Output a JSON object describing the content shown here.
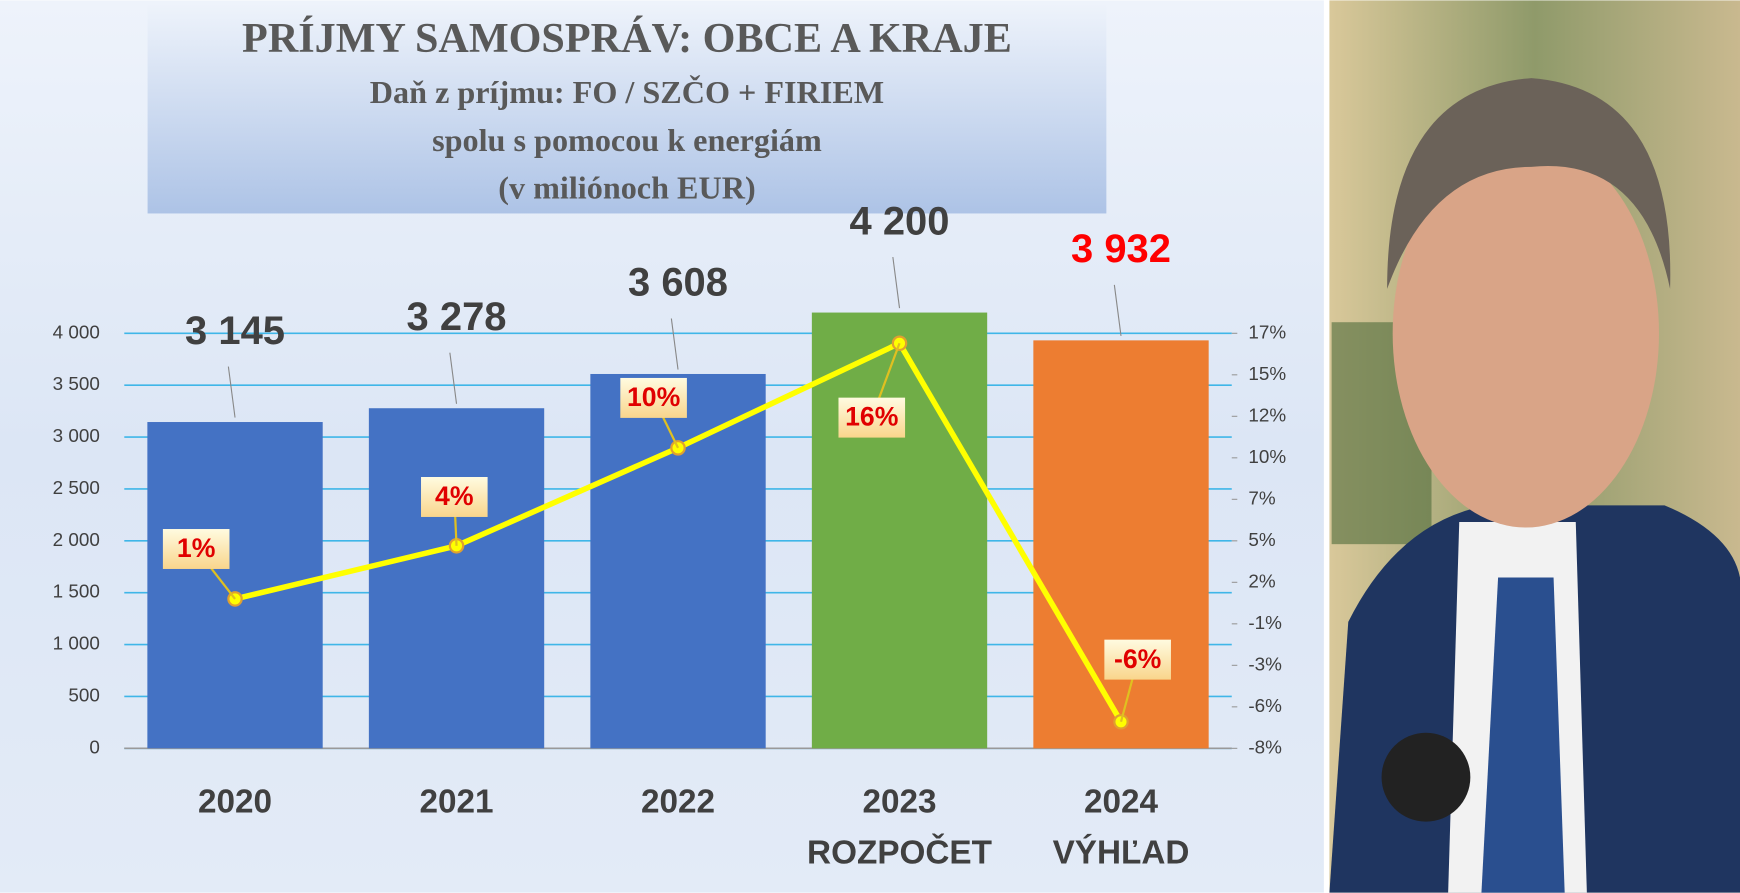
{
  "chart_data": {
    "type": "bar",
    "title": "PRÍJMY SAMOSPRÁV: OBCE A KRAJE",
    "subtitle": [
      "Daň z príjmu: FO / SZČO + FIRIEM",
      "spolu s pomocou k energiám",
      "(v miliónoch EUR)"
    ],
    "categories": [
      "2020",
      "2021",
      "2022",
      "2023",
      "2024"
    ],
    "category_sublabels": [
      null,
      null,
      null,
      "ROZPOČET",
      "VÝHĽAD"
    ],
    "series": [
      {
        "type": "bar",
        "colors": [
          "#4472c4",
          "#4472c4",
          "#4472c4",
          "#70ad47",
          "#ed7d31"
        ],
        "values": [
          3145,
          3278,
          3608,
          4200,
          3932
        ],
        "value_labels": [
          "3 145",
          "3 278",
          "3 608",
          "4 200",
          "3 932"
        ],
        "value_label_colors": [
          "#404040",
          "#404040",
          "#404040",
          "#404040",
          "#ff0000"
        ]
      },
      {
        "type": "line",
        "axis": "y2",
        "color": "#ffff00",
        "values": [
          1,
          4.2,
          10.1,
          16.4,
          -6.4
        ],
        "value_labels": [
          "1%",
          "4%",
          "10%",
          "16%",
          "-6%"
        ]
      }
    ],
    "ylim": [
      0,
      4000
    ],
    "yticks": [
      0,
      500,
      {
        "value": 1000,
        "label": "1 000"
      },
      {
        "value": 1500,
        "label": "1 500"
      },
      {
        "value": 2000,
        "label": "2 000"
      },
      {
        "value": 2500,
        "label": "2 500"
      },
      {
        "value": 3000,
        "label": "3 000"
      },
      {
        "value": 3500,
        "label": "3 500"
      },
      {
        "value": 4000,
        "label": "4 000"
      }
    ],
    "y2lim": [
      -8,
      17
    ],
    "y2ticks": [
      {
        "value": -8,
        "label": "-8%"
      },
      {
        "value": -5.5,
        "label": "-6%"
      },
      {
        "value": -3,
        "label": "-3%"
      },
      {
        "value": -0.5,
        "label": "-1%"
      },
      {
        "value": 2,
        "label": "2%"
      },
      {
        "value": 4.5,
        "label": "5%"
      },
      {
        "value": 7,
        "label": "7%"
      },
      {
        "value": 9.5,
        "label": "10%"
      },
      {
        "value": 12,
        "label": "12%"
      },
      {
        "value": 14.5,
        "label": "15%"
      },
      {
        "value": 17,
        "label": "17%"
      }
    ],
    "grid": true
  }
}
